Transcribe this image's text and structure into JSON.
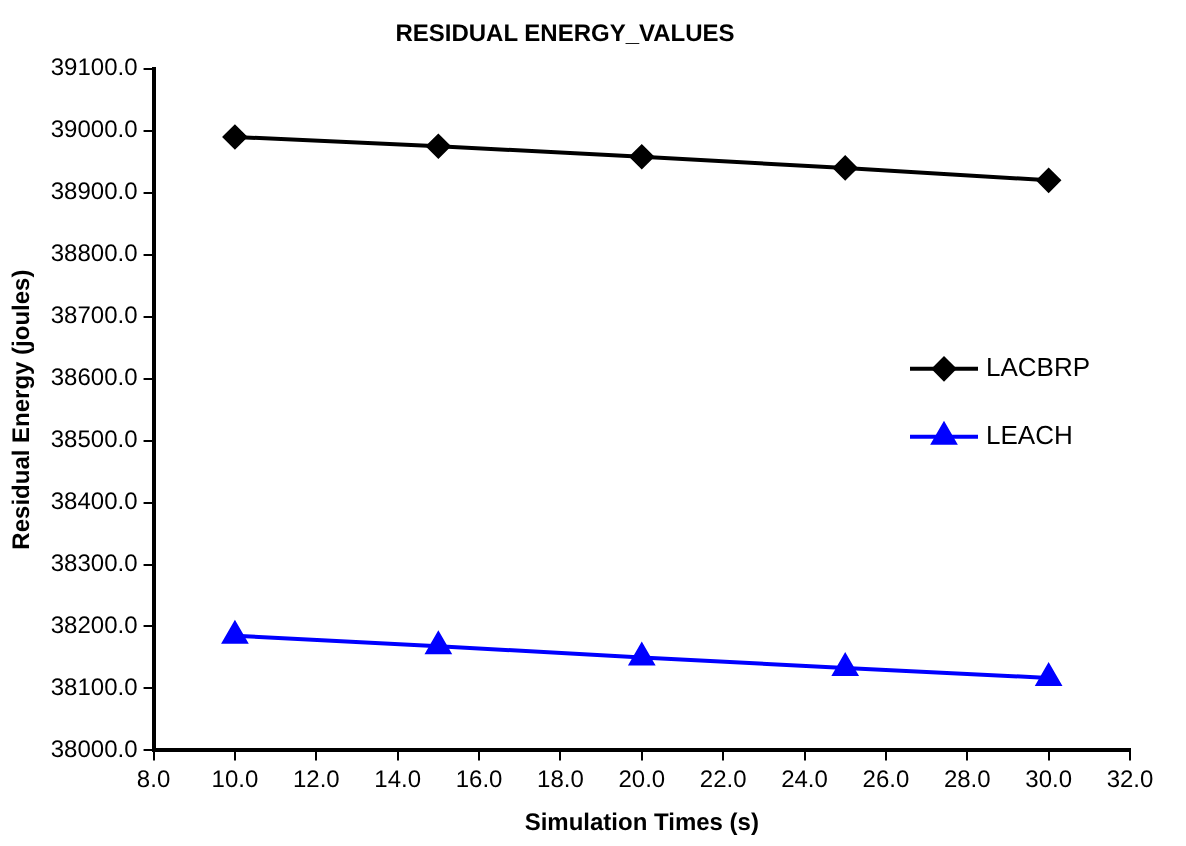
{
  "chart_data": {
    "type": "line",
    "title": "RESIDUAL ENERGY_VALUES",
    "xlabel": "Simulation Times (s)",
    "ylabel": "Residual Energy (joules)",
    "x": [
      10,
      15,
      20,
      25,
      30
    ],
    "series": [
      {
        "name": "LACBRP",
        "color": "#000000",
        "marker": "diamond",
        "values": [
          38990,
          38975,
          38958,
          38940,
          38920
        ]
      },
      {
        "name": "LEACH",
        "color": "#0000ff",
        "marker": "triangle",
        "values": [
          38185,
          38168,
          38150,
          38133,
          38117
        ]
      }
    ],
    "xlim": [
      8,
      32
    ],
    "xticks": [
      {
        "value": 8,
        "label": "8.0"
      },
      {
        "value": 10,
        "label": "10.0"
      },
      {
        "value": 12,
        "label": "12.0"
      },
      {
        "value": 14,
        "label": "14.0"
      },
      {
        "value": 16,
        "label": "16.0"
      },
      {
        "value": 18,
        "label": "18.0"
      },
      {
        "value": 20,
        "label": "20.0"
      },
      {
        "value": 22,
        "label": "22.0"
      },
      {
        "value": 24,
        "label": "24.0"
      },
      {
        "value": 26,
        "label": "26.0"
      },
      {
        "value": 28,
        "label": "28.0"
      },
      {
        "value": 30,
        "label": "30.0"
      },
      {
        "value": 32,
        "label": "32.0"
      }
    ],
    "ylim": [
      38000,
      39100
    ],
    "yticks": [
      {
        "value": 38000,
        "label": "38000.0"
      },
      {
        "value": 38100,
        "label": "38100.0"
      },
      {
        "value": 38200,
        "label": "38200.0"
      },
      {
        "value": 38300,
        "label": "38300.0"
      },
      {
        "value": 38400,
        "label": "38400.0"
      },
      {
        "value": 38500,
        "label": "38500.0"
      },
      {
        "value": 38600,
        "label": "38600.0"
      },
      {
        "value": 38700,
        "label": "38700.0"
      },
      {
        "value": 38800,
        "label": "38800.0"
      },
      {
        "value": 38900,
        "label": "38900.0"
      },
      {
        "value": 39000,
        "label": "39000.0"
      },
      {
        "value": 39100,
        "label": "39100.0"
      }
    ],
    "grid": false,
    "legend": "right",
    "line_style": "solid"
  }
}
